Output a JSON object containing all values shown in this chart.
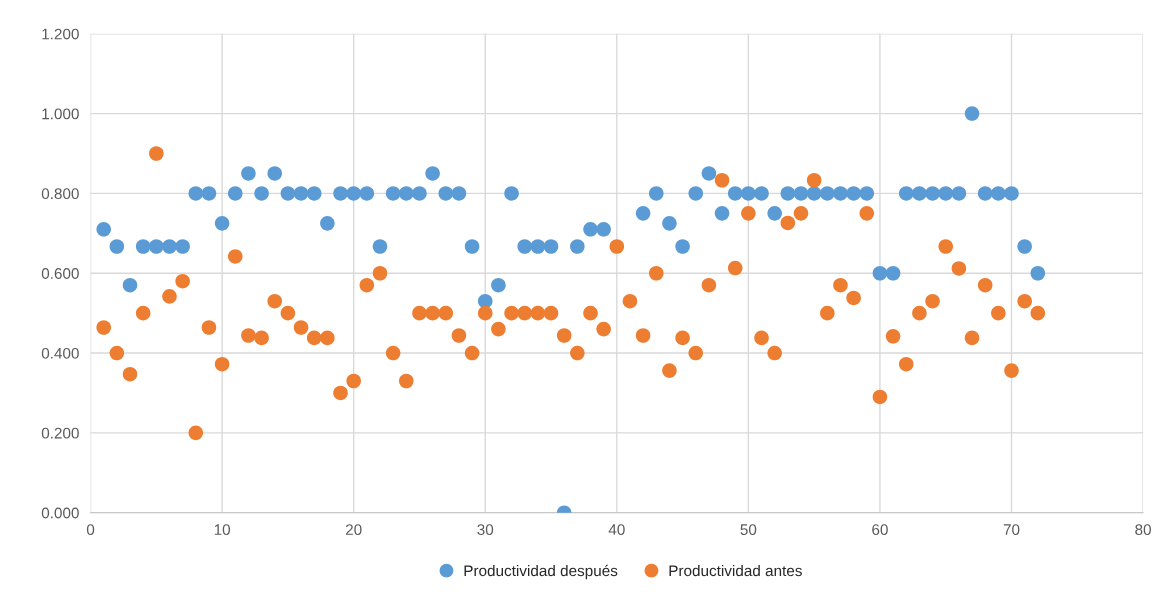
{
  "chart_data": {
    "type": "scatter",
    "x": [
      1,
      2,
      3,
      4,
      5,
      6,
      7,
      8,
      9,
      10,
      11,
      12,
      13,
      14,
      15,
      16,
      17,
      18,
      19,
      20,
      21,
      22,
      23,
      24,
      25,
      26,
      27,
      28,
      29,
      30,
      31,
      32,
      33,
      34,
      35,
      36,
      37,
      38,
      39,
      40,
      41,
      42,
      43,
      44,
      45,
      46,
      47,
      48,
      49,
      50,
      51,
      52,
      53,
      54,
      55,
      56,
      57,
      58,
      59,
      60,
      61,
      62,
      63,
      64,
      65,
      66,
      67,
      68,
      69,
      70,
      71,
      72
    ],
    "series": [
      {
        "name": "Productividad después",
        "color": "#5b9bd5",
        "values": [
          0.71,
          0.667,
          0.57,
          0.667,
          0.667,
          0.667,
          0.667,
          0.8,
          0.8,
          0.725,
          0.8,
          0.85,
          0.8,
          0.85,
          0.8,
          0.8,
          0.8,
          0.725,
          0.8,
          0.8,
          0.8,
          0.667,
          0.8,
          0.8,
          0.8,
          0.85,
          0.8,
          0.8,
          0.667,
          0.53,
          0.57,
          0.8,
          0.667,
          0.667,
          0.667,
          0,
          0.667,
          0.71,
          0.71,
          null,
          null,
          0.75,
          0.8,
          0.725,
          0.667,
          0.8,
          0.85,
          0.75,
          0.8,
          0.8,
          0.8,
          0.75,
          0.8,
          0.8,
          0.8,
          0.8,
          0.8,
          0.8,
          0.8,
          0.6,
          0.6,
          0.8,
          0.8,
          0.8,
          0.8,
          0.8,
          1.0,
          0.8,
          0.8,
          0.8,
          0.667,
          0.6
        ]
      },
      {
        "name": "Productividad antes",
        "color": "#ed7d31",
        "values": [
          0.464,
          0.4,
          0.347,
          0.5,
          0.9,
          0.542,
          0.58,
          0.2,
          0.464,
          0.372,
          0.642,
          0.444,
          0.438,
          0.53,
          0.5,
          0.464,
          0.438,
          0.438,
          0.3,
          0.33,
          0.57,
          0.6,
          0.4,
          0.33,
          0.5,
          0.5,
          0.5,
          0.444,
          0.4,
          0.5,
          0.46,
          0.5,
          0.5,
          0.5,
          0.5,
          0.444,
          0.4,
          0.5,
          0.46,
          0.667,
          0.53,
          0.444,
          0.6,
          0.356,
          0.438,
          0.4,
          0.57,
          0.833,
          0.613,
          0.75,
          0.438,
          0.4,
          0.726,
          0.75,
          0.833,
          0.5,
          0.57,
          0.538,
          0.75,
          0.29,
          0.442,
          0.372,
          0.5,
          0.53,
          0.667,
          0.612,
          0.438,
          0.57,
          0.5,
          0.356,
          0.53,
          0.5
        ]
      }
    ],
    "xlim": [
      0,
      80
    ],
    "xticks": [
      0,
      10,
      20,
      30,
      40,
      50,
      60,
      70,
      80
    ],
    "ylim": [
      0,
      1.2
    ],
    "yticks": [
      {
        "value": 0,
        "label": "0.000"
      },
      {
        "value": 0.2,
        "label": "0.200"
      },
      {
        "value": 0.4,
        "label": "0.400"
      },
      {
        "value": 0.6,
        "label": "0.600"
      },
      {
        "value": 0.8,
        "label": "0.800"
      },
      {
        "value": 1.0,
        "label": "1.000"
      },
      {
        "value": 1.2,
        "label": "1.200"
      }
    ],
    "grid": true,
    "legend": "bottom",
    "marker": "circle"
  }
}
